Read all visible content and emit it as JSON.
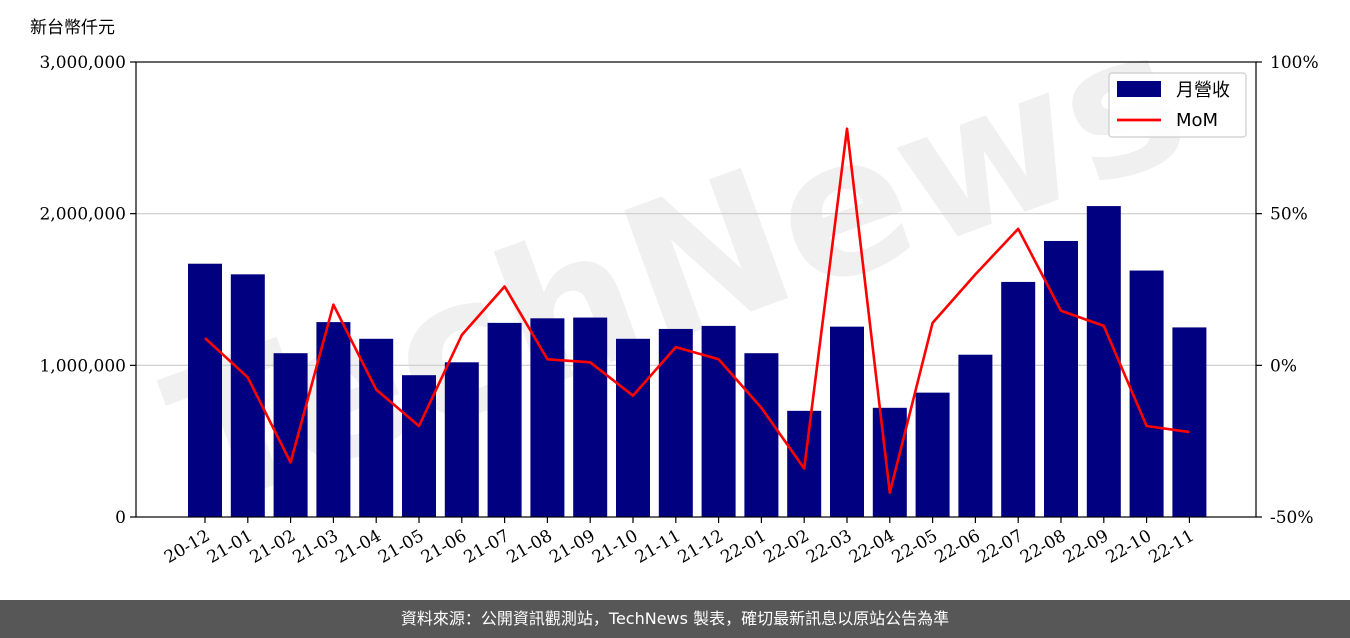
{
  "watermark": "TechNews",
  "unit_label": "新台幣仟元",
  "footer": "資料來源：公開資訊觀測站，TechNews 製表，確切最新訊息以原站公告為準",
  "colors": {
    "bar": "#000080",
    "line": "#ff0000",
    "grid": "#cccccc",
    "footer_bg": "#575757"
  },
  "chart_data": {
    "type": "bar",
    "categories": [
      "20-12",
      "21-01",
      "21-02",
      "21-03",
      "21-04",
      "21-05",
      "21-06",
      "21-07",
      "21-08",
      "21-09",
      "21-10",
      "21-11",
      "21-12",
      "22-01",
      "22-02",
      "22-03",
      "22-04",
      "22-05",
      "22-06",
      "22-07",
      "22-08",
      "22-09",
      "22-10",
      "22-11"
    ],
    "series": [
      {
        "name": "月營收",
        "axis": "left",
        "type": "bar",
        "values": [
          1670000,
          1600000,
          1080000,
          1285000,
          1175000,
          935000,
          1020000,
          1280000,
          1310000,
          1315000,
          1175000,
          1240000,
          1260000,
          1080000,
          700000,
          1255000,
          720000,
          820000,
          1070000,
          1550000,
          1820000,
          2050000,
          1625000,
          1250000
        ]
      },
      {
        "name": "MoM",
        "axis": "right",
        "type": "line",
        "unit": "%",
        "values": [
          9,
          -4,
          -32,
          20,
          -8,
          -20,
          10,
          26,
          2,
          1,
          -10,
          6,
          2,
          -14,
          -34,
          78,
          -42,
          14,
          30,
          45,
          18,
          13,
          -20,
          -22
        ]
      }
    ],
    "y_left": {
      "ylim": [
        0,
        3000000
      ],
      "ticks": [
        "0",
        "1,000,000",
        "2,000,000",
        "3,000,000"
      ],
      "tick_values": [
        0,
        1000000,
        2000000,
        3000000
      ]
    },
    "y_right": {
      "ylim": [
        -50,
        100
      ],
      "ticks": [
        "-50%",
        "0%",
        "50%",
        "100%"
      ],
      "tick_values": [
        -50,
        0,
        50,
        100
      ]
    },
    "grid": "horizontal",
    "legend": {
      "placement": "top-right",
      "entries": [
        "月營收",
        "MoM"
      ]
    }
  }
}
